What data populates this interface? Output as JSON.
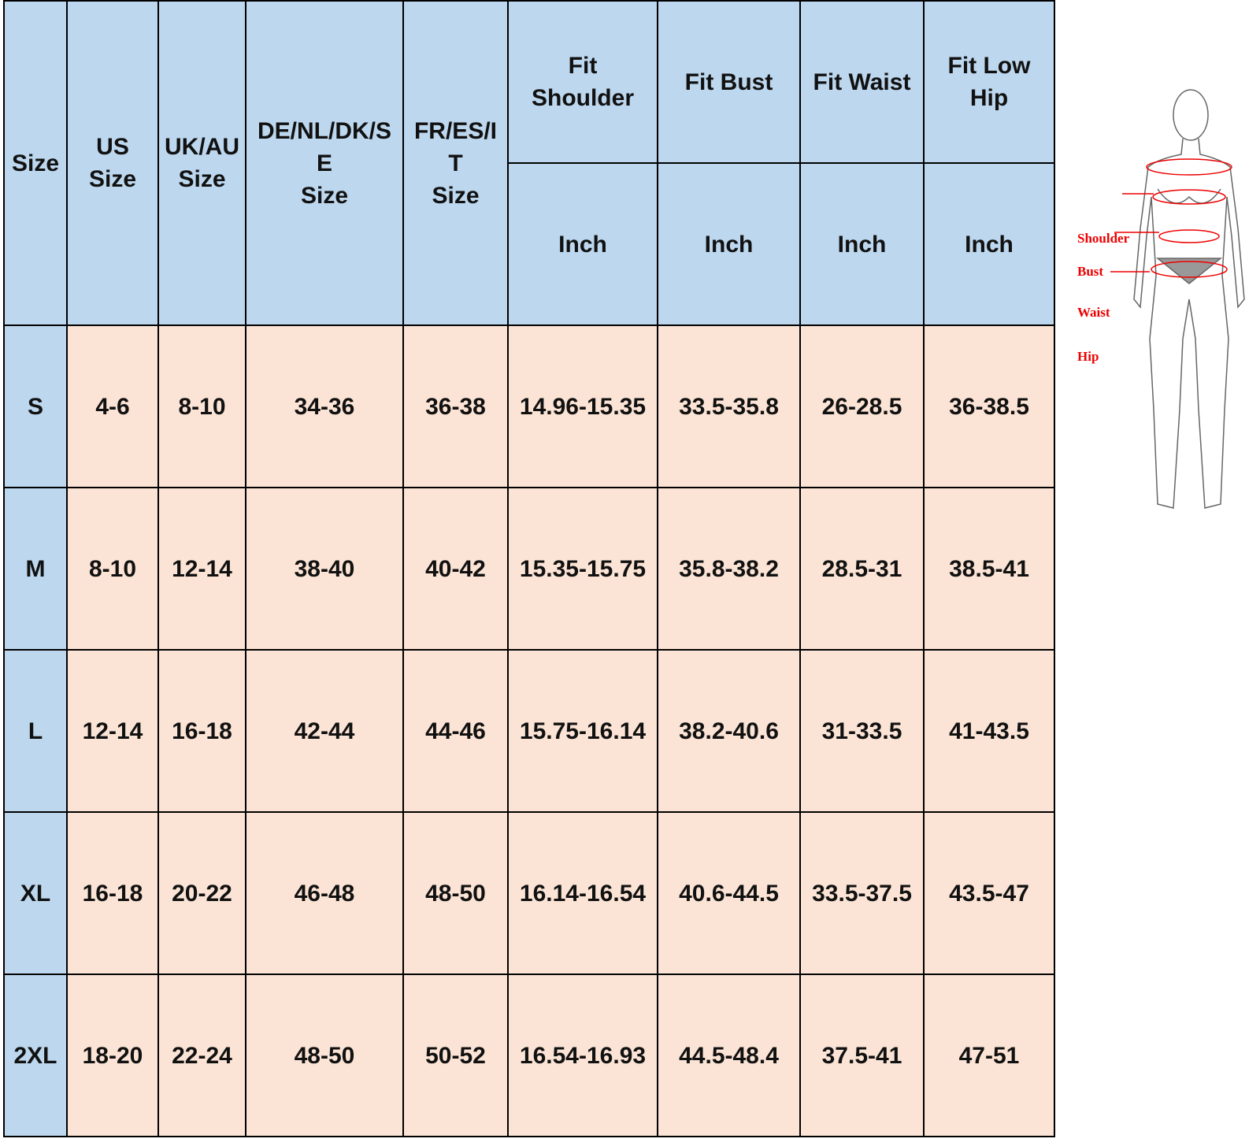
{
  "table": {
    "headers": [
      "Size",
      "US\nSize",
      "UK/AU\nSize",
      "DE/NL/DK/S\nE\nSize",
      "FR/ES/I\nT\nSize",
      "Fit\nShoulder",
      "Fit Bust",
      "Fit Waist",
      "Fit Low\nHip"
    ],
    "units": [
      "Inch",
      "Inch",
      "Inch",
      "Inch"
    ],
    "rows": [
      [
        "S",
        "4-6",
        "8-10",
        "34-36",
        "36-38",
        "14.96-15.35",
        "33.5-35.8",
        "26-28.5",
        "36-38.5"
      ],
      [
        "M",
        "8-10",
        "12-14",
        "38-40",
        "40-42",
        "15.35-15.75",
        "35.8-38.2",
        "28.5-31",
        "38.5-41"
      ],
      [
        "L",
        "12-14",
        "16-18",
        "42-44",
        "44-46",
        "15.75-16.14",
        "38.2-40.6",
        "31-33.5",
        "41-43.5"
      ],
      [
        "XL",
        "16-18",
        "20-22",
        "46-48",
        "48-50",
        "16.14-16.54",
        "40.6-44.5",
        "33.5-37.5",
        "43.5-47"
      ],
      [
        "2XL",
        "18-20",
        "22-24",
        "48-50",
        "50-52",
        "16.54-16.93",
        "44.5-48.4",
        "37.5-41",
        "47-51"
      ]
    ]
  },
  "figure": {
    "labels": [
      "Shoulder",
      "Bust",
      "Waist",
      "Hip"
    ]
  }
}
